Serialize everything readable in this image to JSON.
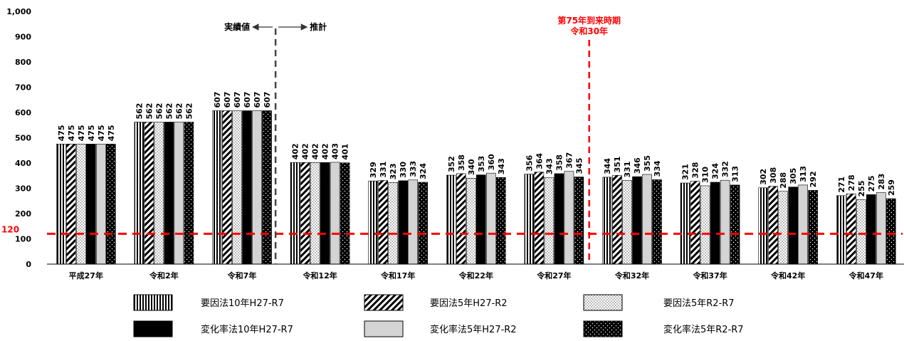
{
  "chart_data": {
    "type": "bar",
    "categories": [
      "平成27年",
      "令和2年",
      "令和7年",
      "令和12年",
      "令和17年",
      "令和22年",
      "令和27年",
      "令和32年",
      "令和37年",
      "令和42年",
      "令和47年"
    ],
    "ylim": [
      0,
      1000
    ],
    "y_ticks": [
      "0",
      "100",
      "200",
      "300",
      "400",
      "500",
      "600",
      "700",
      "800",
      "900",
      "1,000"
    ],
    "grid": false,
    "legend_position": "bottom",
    "series": [
      {
        "name": "要因法10年H27-R7",
        "pattern": "vertical-stripes",
        "values": [
          475,
          562,
          607,
          402,
          329,
          352,
          356,
          344,
          321,
          302,
          271
        ]
      },
      {
        "name": "要因法5年H27-R2",
        "pattern": "diagonal-stripes",
        "values": [
          475,
          562,
          607,
          402,
          331,
          358,
          364,
          351,
          328,
          308,
          278
        ]
      },
      {
        "name": "要因法5年R2-R7",
        "pattern": "dots",
        "values": [
          475,
          562,
          607,
          402,
          323,
          340,
          343,
          331,
          310,
          288,
          255
        ]
      },
      {
        "name": "変化率法10年H27-R7",
        "pattern": "solid-black",
        "values": [
          475,
          562,
          607,
          402,
          330,
          353,
          358,
          346,
          324,
          305,
          275
        ]
      },
      {
        "name": "変化率法5年H27-R2",
        "pattern": "solid-gray",
        "values": [
          475,
          562,
          607,
          403,
          333,
          360,
          367,
          355,
          332,
          313,
          283
        ]
      },
      {
        "name": "変化率法5年R2-R7",
        "pattern": "black-dots",
        "values": [
          475,
          562,
          607,
          401,
          324,
          343,
          345,
          334,
          313,
          292,
          259
        ]
      }
    ],
    "reference_line": {
      "value": 120,
      "label": "120",
      "color": "#ff0000"
    },
    "annotations": {
      "actual_label": "実績値",
      "forecast_label": "推計",
      "milestone_line1": "第75年到来時期",
      "milestone_line2": "令和30年",
      "milestone_color": "#ff0000"
    }
  }
}
